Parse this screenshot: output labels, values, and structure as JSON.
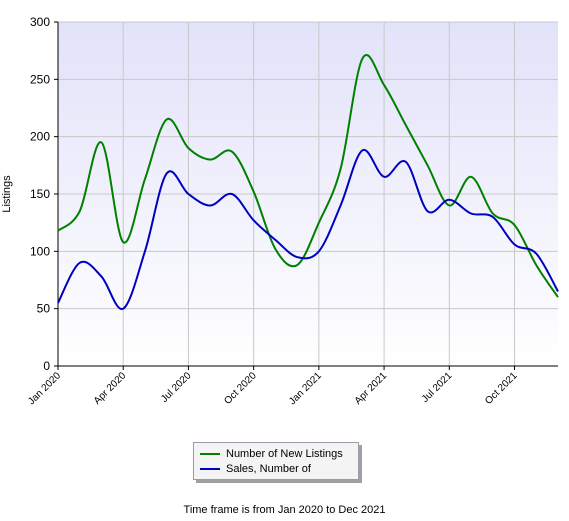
{
  "chart_data": {
    "type": "line",
    "ylabel": "Listings",
    "ylim": [
      0,
      300
    ],
    "yticks": [
      0,
      50,
      100,
      150,
      200,
      250,
      300
    ],
    "x": [
      "Jan 2020",
      "Feb 2020",
      "Mar 2020",
      "Apr 2020",
      "May 2020",
      "Jun 2020",
      "Jul 2020",
      "Aug 2020",
      "Sep 2020",
      "Oct 2020",
      "Nov 2020",
      "Dec 2020",
      "Jan 2021",
      "Feb 2021",
      "Mar 2021",
      "Apr 2021",
      "May 2021",
      "Jun 2021",
      "Jul 2021",
      "Aug 2021",
      "Sep 2021",
      "Oct 2021",
      "Nov 2021",
      "Dec 2021"
    ],
    "xtick_labels": [
      "Jan 2020",
      "Apr 2020",
      "Jul 2020",
      "Oct 2020",
      "Jan 2021",
      "Apr 2021",
      "Jul 2021",
      "Oct 2021"
    ],
    "xtick_index": [
      0,
      3,
      6,
      9,
      12,
      15,
      18,
      21
    ],
    "series": [
      {
        "name": "Number of New Listings",
        "color": "#008000",
        "values": [
          118,
          135,
          195,
          108,
          163,
          215,
          190,
          180,
          187,
          152,
          102,
          88,
          125,
          172,
          268,
          245,
          210,
          175,
          140,
          165,
          133,
          123,
          88,
          60
        ]
      },
      {
        "name": "Sales, Number of",
        "color": "#0000c0",
        "values": [
          55,
          90,
          78,
          50,
          100,
          168,
          150,
          140,
          150,
          127,
          110,
          95,
          100,
          140,
          188,
          165,
          178,
          135,
          145,
          133,
          130,
          106,
          98,
          65
        ]
      }
    ],
    "grid": true,
    "legend_position": "bottom"
  },
  "legend": {
    "items": [
      {
        "label": "Number of New Listings",
        "color": "#008000"
      },
      {
        "label": "Sales, Number of",
        "color": "#0000c0"
      }
    ]
  },
  "footer": "Time frame is from Jan 2020 to Dec 2021"
}
